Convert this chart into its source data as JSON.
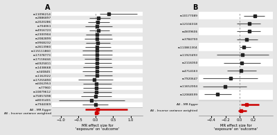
{
  "panel_A": {
    "snps": [
      "rs11096214",
      "rs2886897",
      "rs2020286",
      "rs704061",
      "rs4916723",
      "rs2300904",
      "rs2082899",
      "rs9968232",
      "rs2613960",
      "rs115111860",
      "rs17378773",
      "rs17118444",
      "rs6925811",
      "rs1438668",
      "rs340845",
      "rs1162022",
      "rs17255890",
      "rs6062953",
      "rs77960",
      "rs10879612",
      "rs75857498",
      "rs8031401",
      "rs7944369"
    ],
    "effect": [
      0.38,
      0.08,
      0.06,
      0.04,
      0.07,
      0.04,
      0.04,
      0.05,
      0.04,
      0.04,
      0.03,
      0.04,
      0.04,
      0.04,
      0.03,
      0.04,
      -0.04,
      0.01,
      0.01,
      0.01,
      0.0,
      -0.12,
      -0.01
    ],
    "ci_low": [
      0.12,
      -0.18,
      -0.22,
      -0.3,
      -0.18,
      -0.28,
      -0.32,
      -0.28,
      -0.3,
      -0.38,
      -0.38,
      -0.32,
      -0.32,
      -0.36,
      -0.38,
      -0.32,
      -0.5,
      -0.36,
      -0.36,
      -0.36,
      -0.42,
      -1.05,
      -0.38
    ],
    "ci_high": [
      1.18,
      0.42,
      0.4,
      0.48,
      0.4,
      0.46,
      0.48,
      0.42,
      0.44,
      0.48,
      0.48,
      0.46,
      0.46,
      0.48,
      0.48,
      0.48,
      0.5,
      0.46,
      0.46,
      0.46,
      0.46,
      0.82,
      0.36
    ],
    "summary_labels": [
      "All - MR Egger",
      "All - Inverse variance weighted"
    ],
    "summary_effect": [
      0.06,
      0.01
    ],
    "summary_ci_low": [
      -0.3,
      -0.03
    ],
    "summary_ci_high": [
      0.9,
      0.09
    ],
    "xlim": [
      -1.25,
      1.35
    ],
    "xticks": [
      -1.0,
      -0.5,
      0.0,
      0.5,
      1.0
    ],
    "xlabel": "MR effect size for\n'exposure' on 'outcome'"
  },
  "panel_B": {
    "snps": [
      "rs10177089",
      "rs12104318",
      "rs4609606",
      "rs3784700",
      "rs113861304",
      "rs11923493",
      "rs2116050",
      "rs4714163",
      "rs7920647",
      "rs11652004",
      "rs12068599"
    ],
    "effect": [
      0.22,
      0.14,
      0.14,
      0.1,
      0.06,
      0.04,
      0.03,
      0.02,
      -0.13,
      -0.21,
      -0.31
    ],
    "ci_low": [
      0.06,
      -0.04,
      -0.04,
      -0.04,
      0.0,
      -0.32,
      -0.22,
      -0.18,
      -0.52,
      -0.52,
      -0.5
    ],
    "ci_high": [
      0.36,
      0.3,
      0.3,
      0.26,
      0.16,
      0.42,
      0.3,
      0.24,
      0.26,
      0.1,
      -0.12
    ],
    "summary_labels": [
      "All - MR Egger",
      "All - Inverse variance weighted"
    ],
    "summary_effect": [
      0.1,
      0.02
    ],
    "summary_ci_low": [
      0.02,
      -0.02
    ],
    "summary_ci_high": [
      0.28,
      0.1
    ],
    "xlim": [
      -0.58,
      0.48
    ],
    "xticks": [
      -0.4,
      -0.2,
      0.0,
      0.2
    ],
    "xlabel": "MR effect size for\n'exposure' on 'outcome'"
  },
  "bg_color": "#e5e5e5",
  "plot_bg_light": "#f2f2f2",
  "plot_bg_dark": "#e8e8e8",
  "marker_color": "#222222",
  "ci_color": "#555555",
  "summary_color_egger": "#cc0000",
  "summary_color_ivw": "#cc0000",
  "vline_color": "#888888",
  "sep_color": "#bbbbbb"
}
